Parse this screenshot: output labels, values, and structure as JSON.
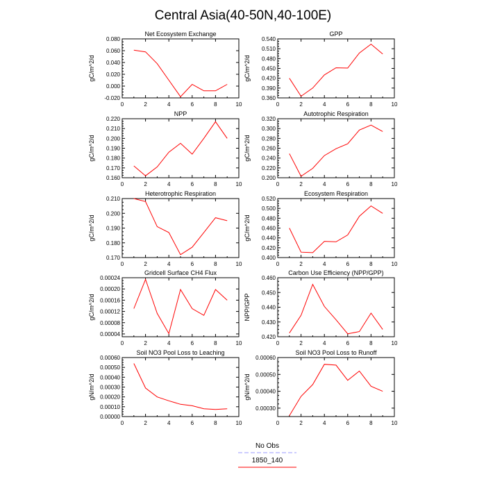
{
  "figure": {
    "title": "Central Asia(40-50N,40-100E)"
  },
  "legend": {
    "items": [
      {
        "label": "No Obs",
        "color": "#9999ff",
        "dashed": true
      },
      {
        "label": "1850_140",
        "color": "#ff0000",
        "dashed": false
      }
    ]
  },
  "chart_data": [
    {
      "type": "line",
      "title": "Net Ecosystem Exchange",
      "ylabel": "gC/m^2/d",
      "xlim": [
        0,
        10
      ],
      "ylim": [
        -0.02,
        0.08
      ],
      "xticks": [
        "0",
        "2",
        "4",
        "6",
        "8",
        "10"
      ],
      "yticks": [
        -0.02,
        0.0,
        0.02,
        0.04,
        0.06,
        0.08
      ],
      "yticklabels": [
        "-0.020",
        "0.000",
        "0.020",
        "0.040",
        "0.060",
        "0.080"
      ],
      "series": [
        {
          "color": "#ff0000",
          "x": [
            1,
            2,
            3,
            4,
            5,
            6,
            7,
            8,
            9
          ],
          "y": [
            0.061,
            0.058,
            0.038,
            0.01,
            -0.018,
            0.003,
            -0.008,
            -0.008,
            0.003
          ]
        }
      ]
    },
    {
      "type": "line",
      "title": "GPP",
      "ylabel": "gC/m^2/d",
      "xlim": [
        0,
        10
      ],
      "ylim": [
        0.36,
        0.54
      ],
      "xticks": [
        "0",
        "2",
        "4",
        "6",
        "8",
        "10"
      ],
      "yticks": [
        0.36,
        0.39,
        0.42,
        0.45,
        0.48,
        0.51,
        0.54
      ],
      "yticklabels": [
        "0.360",
        "0.390",
        "0.420",
        "0.450",
        "0.480",
        "0.510",
        "0.540"
      ],
      "series": [
        {
          "color": "#ff0000",
          "x": [
            1,
            2,
            3,
            4,
            5,
            6,
            7,
            8,
            9
          ],
          "y": [
            0.42,
            0.365,
            0.39,
            0.43,
            0.452,
            0.451,
            0.497,
            0.524,
            0.494
          ]
        }
      ]
    },
    {
      "type": "line",
      "title": "NPP",
      "ylabel": "gC/m^2/d",
      "xlim": [
        0,
        10
      ],
      "ylim": [
        0.16,
        0.22
      ],
      "xticks": [
        "0",
        "2",
        "4",
        "6",
        "8",
        "10"
      ],
      "yticks": [
        0.16,
        0.17,
        0.18,
        0.19,
        0.2,
        0.21,
        0.22
      ],
      "yticklabels": [
        "0.160",
        "0.170",
        "0.180",
        "0.190",
        "0.200",
        "0.210",
        "0.220"
      ],
      "series": [
        {
          "color": "#ff0000",
          "x": [
            1,
            2,
            3,
            4,
            5,
            6,
            7,
            8,
            9
          ],
          "y": [
            0.172,
            0.162,
            0.171,
            0.186,
            0.195,
            0.184,
            0.2,
            0.217,
            0.2
          ]
        }
      ]
    },
    {
      "type": "line",
      "title": "Autotrophic Respiration",
      "ylabel": "gC/m^2/d",
      "xlim": [
        0,
        10
      ],
      "ylim": [
        0.2,
        0.32
      ],
      "xticks": [
        "0",
        "2",
        "4",
        "6",
        "8",
        "10"
      ],
      "yticks": [
        0.2,
        0.22,
        0.24,
        0.26,
        0.28,
        0.3,
        0.32
      ],
      "yticklabels": [
        "0.200",
        "0.220",
        "0.240",
        "0.260",
        "0.280",
        "0.300",
        "0.320"
      ],
      "series": [
        {
          "color": "#ff0000",
          "x": [
            1,
            2,
            3,
            4,
            5,
            6,
            7,
            8,
            9
          ],
          "y": [
            0.249,
            0.203,
            0.219,
            0.245,
            0.259,
            0.269,
            0.297,
            0.307,
            0.294
          ]
        }
      ]
    },
    {
      "type": "line",
      "title": "Heterotrophic Respiration",
      "ylabel": "gC/m^2/d",
      "xlim": [
        0,
        10
      ],
      "ylim": [
        0.17,
        0.21
      ],
      "xticks": [
        "0",
        "2",
        "4",
        "6",
        "8",
        "10"
      ],
      "yticks": [
        0.17,
        0.18,
        0.19,
        0.2,
        0.21
      ],
      "yticklabels": [
        "0.170",
        "0.180",
        "0.190",
        "0.200",
        "0.210"
      ],
      "series": [
        {
          "color": "#ff0000",
          "x": [
            1,
            2,
            3,
            4,
            5,
            6,
            7,
            8,
            9
          ],
          "y": [
            0.21,
            0.208,
            0.191,
            0.187,
            0.172,
            0.177,
            0.187,
            0.197,
            0.195
          ]
        }
      ]
    },
    {
      "type": "line",
      "title": "Ecosystem Respiration",
      "ylabel": "gC/m^2/d",
      "xlim": [
        0,
        10
      ],
      "ylim": [
        0.4,
        0.52
      ],
      "xticks": [
        "0",
        "2",
        "4",
        "6",
        "8",
        "10"
      ],
      "yticks": [
        0.4,
        0.42,
        0.44,
        0.46,
        0.48,
        0.5,
        0.52
      ],
      "yticklabels": [
        "0.400",
        "0.420",
        "0.440",
        "0.460",
        "0.480",
        "0.500",
        "0.520"
      ],
      "series": [
        {
          "color": "#ff0000",
          "x": [
            1,
            2,
            3,
            4,
            5,
            6,
            7,
            8,
            9
          ],
          "y": [
            0.46,
            0.411,
            0.41,
            0.433,
            0.432,
            0.446,
            0.484,
            0.505,
            0.49
          ]
        }
      ]
    },
    {
      "type": "line",
      "title": "Gridcell Surface CH4 Flux",
      "ylabel": "gC/m^2/d",
      "xlim": [
        0,
        10
      ],
      "ylim": [
        3e-05,
        0.00024
      ],
      "xticks": [
        "0",
        "2",
        "4",
        "6",
        "8",
        "10"
      ],
      "yticks": [
        4e-05,
        8e-05,
        0.00012,
        0.00016,
        0.0002,
        0.00024
      ],
      "yticklabels": [
        "0.00004",
        "0.00008",
        "0.00012",
        "0.00016",
        "0.00020",
        "0.00024"
      ],
      "series": [
        {
          "color": "#ff0000",
          "x": [
            1,
            2,
            3,
            4,
            5,
            6,
            7,
            8,
            9
          ],
          "y": [
            0.00013,
            0.000234,
            0.000113,
            4.1e-05,
            0.000198,
            0.00013,
            0.000106,
            0.000198,
            0.00016
          ]
        }
      ]
    },
    {
      "type": "line",
      "title": "Carbon Use Efficiency (NPP/GPP)",
      "ylabel": "NPP/GPP",
      "xlim": [
        0,
        10
      ],
      "ylim": [
        0.42,
        0.46
      ],
      "xticks": [
        "0",
        "2",
        "4",
        "6",
        "8",
        "10"
      ],
      "yticks": [
        0.42,
        0.43,
        0.44,
        0.45,
        0.46
      ],
      "yticklabels": [
        "0.420",
        "0.430",
        "0.440",
        "0.450",
        "0.460"
      ],
      "series": [
        {
          "color": "#ff0000",
          "x": [
            1,
            2,
            3,
            4,
            5,
            6,
            7,
            8,
            9
          ],
          "y": [
            0.4225,
            0.4345,
            0.4555,
            0.4405,
            0.4315,
            0.422,
            0.4235,
            0.436,
            0.425
          ]
        }
      ]
    },
    {
      "type": "line",
      "title": "Soil NO3 Pool Loss to Leaching",
      "ylabel": "gN/m^2/d",
      "xlim": [
        0,
        10
      ],
      "ylim": [
        0.0,
        0.0006
      ],
      "xticks": [
        "0",
        "2",
        "4",
        "6",
        "8",
        "10"
      ],
      "yticks": [
        0.0,
        0.0001,
        0.0002,
        0.0003,
        0.0004,
        0.0005,
        0.0006
      ],
      "yticklabels": [
        "0.00000",
        "0.00010",
        "0.00020",
        "0.00030",
        "0.00040",
        "0.00050",
        "0.00060"
      ],
      "series": [
        {
          "color": "#ff0000",
          "x": [
            1,
            2,
            3,
            4,
            5,
            6,
            7,
            8,
            9
          ],
          "y": [
            0.00054,
            0.00029,
            0.0002,
            0.00016,
            0.000125,
            0.00011,
            8e-05,
            7.3e-05,
            8e-05
          ]
        }
      ]
    },
    {
      "type": "line",
      "title": "Soil NO3 Pool Loss to Runoff",
      "ylabel": "gN/m^2/d",
      "xlim": [
        0,
        10
      ],
      "ylim": [
        0.00025,
        0.0006
      ],
      "xticks": [
        "0",
        "2",
        "4",
        "6",
        "8",
        "10"
      ],
      "yticks": [
        0.0003,
        0.0004,
        0.0005,
        0.0006
      ],
      "yticklabels": [
        "0.00030",
        "0.00040",
        "0.00050",
        "0.00060"
      ],
      "series": [
        {
          "color": "#ff0000",
          "x": [
            1,
            2,
            3,
            4,
            5,
            6,
            7,
            8,
            9
          ],
          "y": [
            0.000255,
            0.00037,
            0.00044,
            0.00056,
            0.000555,
            0.000465,
            0.00052,
            0.00043,
            0.0004
          ]
        }
      ]
    }
  ]
}
